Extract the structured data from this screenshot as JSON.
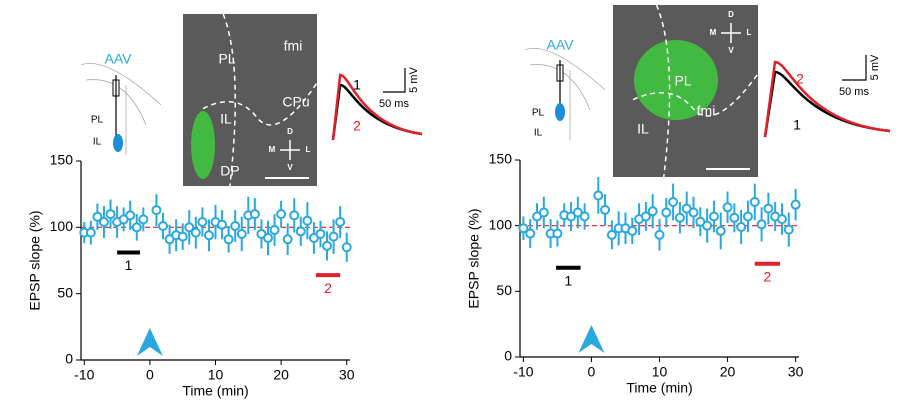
{
  "chart_data": [
    {
      "type": "scatter",
      "xlabel": "Time (min)",
      "ylabel": "EPSP slope (%)",
      "color": "#29a8e0",
      "xlim": [
        -10.5,
        30.5
      ],
      "ylim": [
        0,
        150
      ],
      "xticks": [
        -10,
        0,
        10,
        20,
        30
      ],
      "yticks": [
        0,
        50,
        100,
        150
      ],
      "x": [
        -10,
        -9,
        -8,
        -7,
        -6,
        -5,
        -4,
        -3,
        -2,
        -1,
        1,
        2,
        3,
        4,
        5,
        6,
        7,
        8,
        9,
        10,
        11,
        12,
        13,
        14,
        15,
        16,
        17,
        18,
        19,
        20,
        21,
        22,
        23,
        24,
        25,
        26,
        27,
        28,
        29,
        30
      ],
      "values": [
        96,
        96,
        108,
        104,
        110,
        104,
        106,
        109,
        100,
        106,
        113,
        101,
        91,
        94,
        93,
        100,
        96,
        104,
        94,
        104,
        102,
        91,
        101,
        95,
        109,
        110,
        95,
        92,
        98,
        110,
        91,
        109,
        97,
        105,
        92,
        95,
        86,
        93,
        104,
        85
      ],
      "errors": [
        8,
        9,
        10,
        12,
        11,
        12,
        9,
        11,
        10,
        9,
        12,
        10,
        11,
        12,
        10,
        13,
        12,
        11,
        12,
        13,
        11,
        10,
        12,
        13,
        14,
        12,
        11,
        13,
        12,
        10,
        12,
        13,
        11,
        14,
        12,
        10,
        11,
        13,
        12,
        11
      ],
      "reference_line": 100,
      "reference_color": "#e0202a",
      "arrow_x": 0,
      "periods": [
        {
          "label": "1",
          "x": [
            -5,
            -1.5
          ],
          "y": 81,
          "color": "#000000"
        },
        {
          "label": "2",
          "x": [
            25.3,
            29
          ],
          "y": 64,
          "color": "#e0202a"
        }
      ],
      "image_labels": [
        "PL",
        "fmi",
        "CPu",
        "IL",
        "DP"
      ],
      "compass": [
        "D",
        "V",
        "M",
        "L"
      ],
      "schematic": {
        "virus": "AAV",
        "regions": [
          "PL",
          "IL"
        ]
      },
      "traces": [
        "1",
        "2"
      ],
      "scale": [
        "5 mV",
        "50 ms"
      ]
    },
    {
      "type": "scatter",
      "xlabel": "Time (min)",
      "ylabel": "EPSP slope (%)",
      "color": "#29a8e0",
      "xlim": [
        -10.5,
        30.5
      ],
      "ylim": [
        0,
        150
      ],
      "xticks": [
        -10,
        0,
        10,
        20,
        30
      ],
      "yticks": [
        0,
        50,
        100,
        150
      ],
      "x": [
        -10,
        -9,
        -8,
        -7,
        -6,
        -5,
        -4,
        -3,
        -2,
        -1,
        1,
        2,
        3,
        4,
        5,
        6,
        7,
        8,
        9,
        10,
        11,
        12,
        13,
        14,
        15,
        16,
        17,
        18,
        19,
        20,
        21,
        22,
        23,
        24,
        25,
        26,
        27,
        28,
        29,
        30
      ],
      "values": [
        98,
        94,
        107,
        110,
        94,
        94,
        108,
        107,
        110,
        107,
        123,
        112,
        93,
        98,
        98,
        96,
        105,
        107,
        111,
        93,
        110,
        118,
        106,
        113,
        110,
        103,
        100,
        107,
        96,
        114,
        106,
        99,
        107,
        118,
        101,
        113,
        107,
        105,
        97,
        116
      ],
      "errors": [
        9,
        11,
        10,
        12,
        11,
        10,
        9,
        11,
        12,
        10,
        14,
        12,
        11,
        13,
        12,
        10,
        12,
        11,
        13,
        12,
        11,
        14,
        12,
        13,
        12,
        11,
        13,
        12,
        14,
        12,
        11,
        13,
        12,
        14,
        13,
        12,
        11,
        12,
        13,
        12
      ],
      "reference_line": 100,
      "reference_color": "#e0202a",
      "arrow_x": 0,
      "periods": [
        {
          "label": "1",
          "x": [
            -5.2,
            -1.6
          ],
          "y": 68,
          "color": "#000000"
        },
        {
          "label": "2",
          "x": [
            24,
            27.7
          ],
          "y": 71,
          "color": "#e0202a"
        }
      ],
      "image_labels": [
        "PL",
        "fmi",
        "IL"
      ],
      "compass": [
        "D",
        "V",
        "M",
        "L"
      ],
      "schematic": {
        "virus": "AAV",
        "regions": [
          "PL",
          "IL"
        ]
      },
      "traces": [
        "2",
        "1"
      ],
      "scale": [
        "5 mV",
        "50 ms"
      ]
    }
  ]
}
